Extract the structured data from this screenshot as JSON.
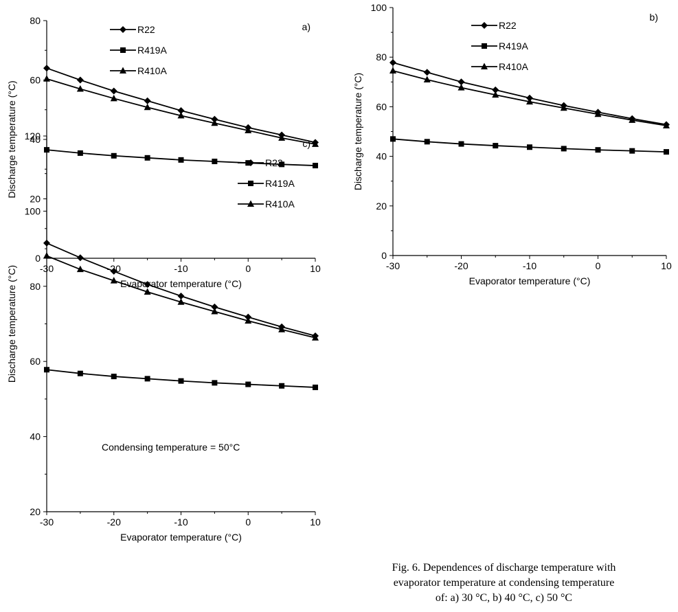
{
  "caption": {
    "line1": "Fig. 6.  Dependences of  discharge temperature with",
    "line2": "evaporator temperature at condensing temperature",
    "line3": "of: a) 30 °C, b) 40 °C, c) 50 °C"
  },
  "chart_data": [
    {
      "type": "line",
      "panel_label": "a)",
      "xlabel": "Evaporator temperature (°C)",
      "ylabel": "Discharge temperature (°C)",
      "xlim": [
        -30,
        10
      ],
      "ylim": [
        0,
        80
      ],
      "xticks": [
        -30,
        -20,
        -10,
        0,
        10
      ],
      "yticks": [
        0,
        20,
        40,
        60,
        80
      ],
      "legend_position": "top-left",
      "grid": false,
      "annotation": "",
      "x": [
        -30,
        -25,
        -20,
        -15,
        -10,
        -5,
        0,
        5,
        10
      ],
      "series": [
        {
          "name": "R22",
          "marker": "diamond",
          "values": [
            64,
            60,
            56.3,
            53,
            49.7,
            46.8,
            44,
            41.5,
            39
          ]
        },
        {
          "name": "R419A",
          "marker": "square",
          "values": [
            36.5,
            35.4,
            34.5,
            33.8,
            33.1,
            32.6,
            32.1,
            31.6,
            31.2
          ]
        },
        {
          "name": "R410A",
          "marker": "triangle",
          "values": [
            60.4,
            57,
            53.8,
            50.8,
            48,
            45.5,
            43,
            40.5,
            38.4
          ]
        }
      ]
    },
    {
      "type": "line",
      "panel_label": "b)",
      "xlabel": "Evaporator temperature (°C)",
      "ylabel": "Discharge temperature (°C)",
      "xlim": [
        -30,
        10
      ],
      "ylim": [
        0,
        100
      ],
      "xticks": [
        -30,
        -20,
        -10,
        0,
        10
      ],
      "yticks": [
        0,
        20,
        40,
        60,
        80,
        100
      ],
      "legend_position": "top-left",
      "grid": false,
      "annotation": "",
      "x": [
        -30,
        -25,
        -20,
        -15,
        -10,
        -5,
        0,
        5,
        10
      ],
      "series": [
        {
          "name": "R22",
          "marker": "diamond",
          "values": [
            77.8,
            73.9,
            70,
            66.8,
            63.5,
            60.5,
            57.8,
            55.2,
            52.8
          ]
        },
        {
          "name": "R419A",
          "marker": "square",
          "values": [
            47,
            45.9,
            45,
            44.3,
            43.7,
            43.1,
            42.6,
            42.2,
            41.8
          ]
        },
        {
          "name": "R410A",
          "marker": "triangle",
          "values": [
            74.5,
            70.9,
            67.7,
            64.8,
            62,
            59.5,
            57,
            54.6,
            52.4
          ]
        }
      ]
    },
    {
      "type": "line",
      "panel_label": "c)",
      "xlabel": "Evaporator temperature (°C)",
      "ylabel": "Discharge temperature (°C)",
      "xlim": [
        -30,
        10
      ],
      "ylim": [
        20,
        120
      ],
      "xticks": [
        -30,
        -20,
        -10,
        0,
        10
      ],
      "yticks": [
        20,
        40,
        60,
        80,
        100,
        120
      ],
      "legend_position": "top-right",
      "grid": false,
      "annotation": "Condensing temperature  = 50°C",
      "x": [
        -30,
        -25,
        -20,
        -15,
        -10,
        -5,
        0,
        5,
        10
      ],
      "series": [
        {
          "name": "R22",
          "marker": "diamond",
          "values": [
            91.5,
            87.6,
            84,
            80.5,
            77.4,
            74.5,
            71.8,
            69.2,
            66.8
          ]
        },
        {
          "name": "R419A",
          "marker": "square",
          "values": [
            57.8,
            56.8,
            56,
            55.4,
            54.8,
            54.3,
            53.9,
            53.5,
            53.1
          ]
        },
        {
          "name": "R410A",
          "marker": "triangle",
          "values": [
            88.1,
            84.5,
            81.5,
            78.5,
            75.8,
            73.3,
            70.8,
            68.5,
            66.3
          ]
        }
      ]
    }
  ]
}
